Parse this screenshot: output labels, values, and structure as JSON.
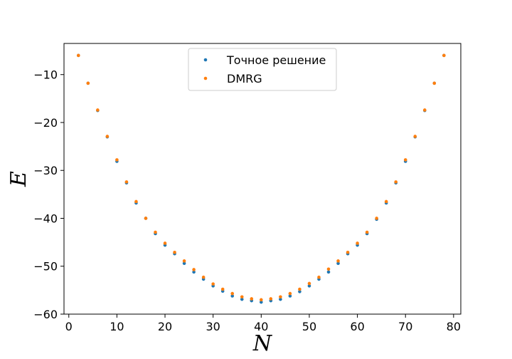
{
  "chart_data": {
    "type": "scatter",
    "title": "",
    "xlabel": "N",
    "ylabel": "E",
    "xlim": [
      -1,
      81.5
    ],
    "ylim": [
      -60,
      -3.5
    ],
    "xticks": [
      0,
      10,
      20,
      30,
      40,
      50,
      60,
      70,
      80
    ],
    "yticks": [
      -60,
      -50,
      -40,
      -30,
      -20,
      -10
    ],
    "xtick_labels": [
      "0",
      "10",
      "20",
      "30",
      "40",
      "50",
      "60",
      "70",
      "80"
    ],
    "ytick_labels": [
      "−60",
      "−50",
      "−40",
      "−30",
      "−20",
      "−10"
    ],
    "grid": false,
    "legend_position": "top-center",
    "x": [
      2,
      4,
      6,
      8,
      10,
      12,
      14,
      16,
      18,
      20,
      22,
      24,
      26,
      28,
      30,
      32,
      34,
      36,
      38,
      40,
      42,
      44,
      46,
      48,
      50,
      52,
      54,
      56,
      58,
      60,
      62,
      64,
      66,
      68,
      70,
      72,
      74,
      76,
      78
    ],
    "series": [
      {
        "name": "Точное решение",
        "color": "#1f77b4",
        "values": [
          -6.0,
          -11.8,
          -17.5,
          -23.0,
          -28.1,
          -32.6,
          -36.8,
          -40.0,
          -43.2,
          -45.6,
          -47.4,
          -49.4,
          -51.2,
          -52.7,
          -54.1,
          -55.2,
          -56.2,
          -56.9,
          -57.2,
          -57.5,
          -57.2,
          -56.9,
          -56.2,
          -55.3,
          -54.1,
          -52.7,
          -51.2,
          -49.4,
          -47.4,
          -45.6,
          -43.2,
          -40.2,
          -36.8,
          -32.6,
          -28.1,
          -23.0,
          -17.5,
          -11.8,
          -6.0
        ]
      },
      {
        "name": "DMRG",
        "color": "#ff7f0e",
        "values": [
          -6.0,
          -11.8,
          -17.4,
          -22.9,
          -27.8,
          -32.4,
          -36.5,
          -40.0,
          -42.9,
          -45.2,
          -47.1,
          -48.9,
          -50.7,
          -52.3,
          -53.7,
          -54.8,
          -55.7,
          -56.4,
          -56.8,
          -57.0,
          -56.8,
          -56.4,
          -55.7,
          -54.8,
          -53.6,
          -52.3,
          -50.6,
          -48.9,
          -47.1,
          -45.2,
          -42.9,
          -40.0,
          -36.5,
          -32.4,
          -27.8,
          -22.9,
          -17.4,
          -11.8,
          -6.0
        ]
      }
    ]
  }
}
